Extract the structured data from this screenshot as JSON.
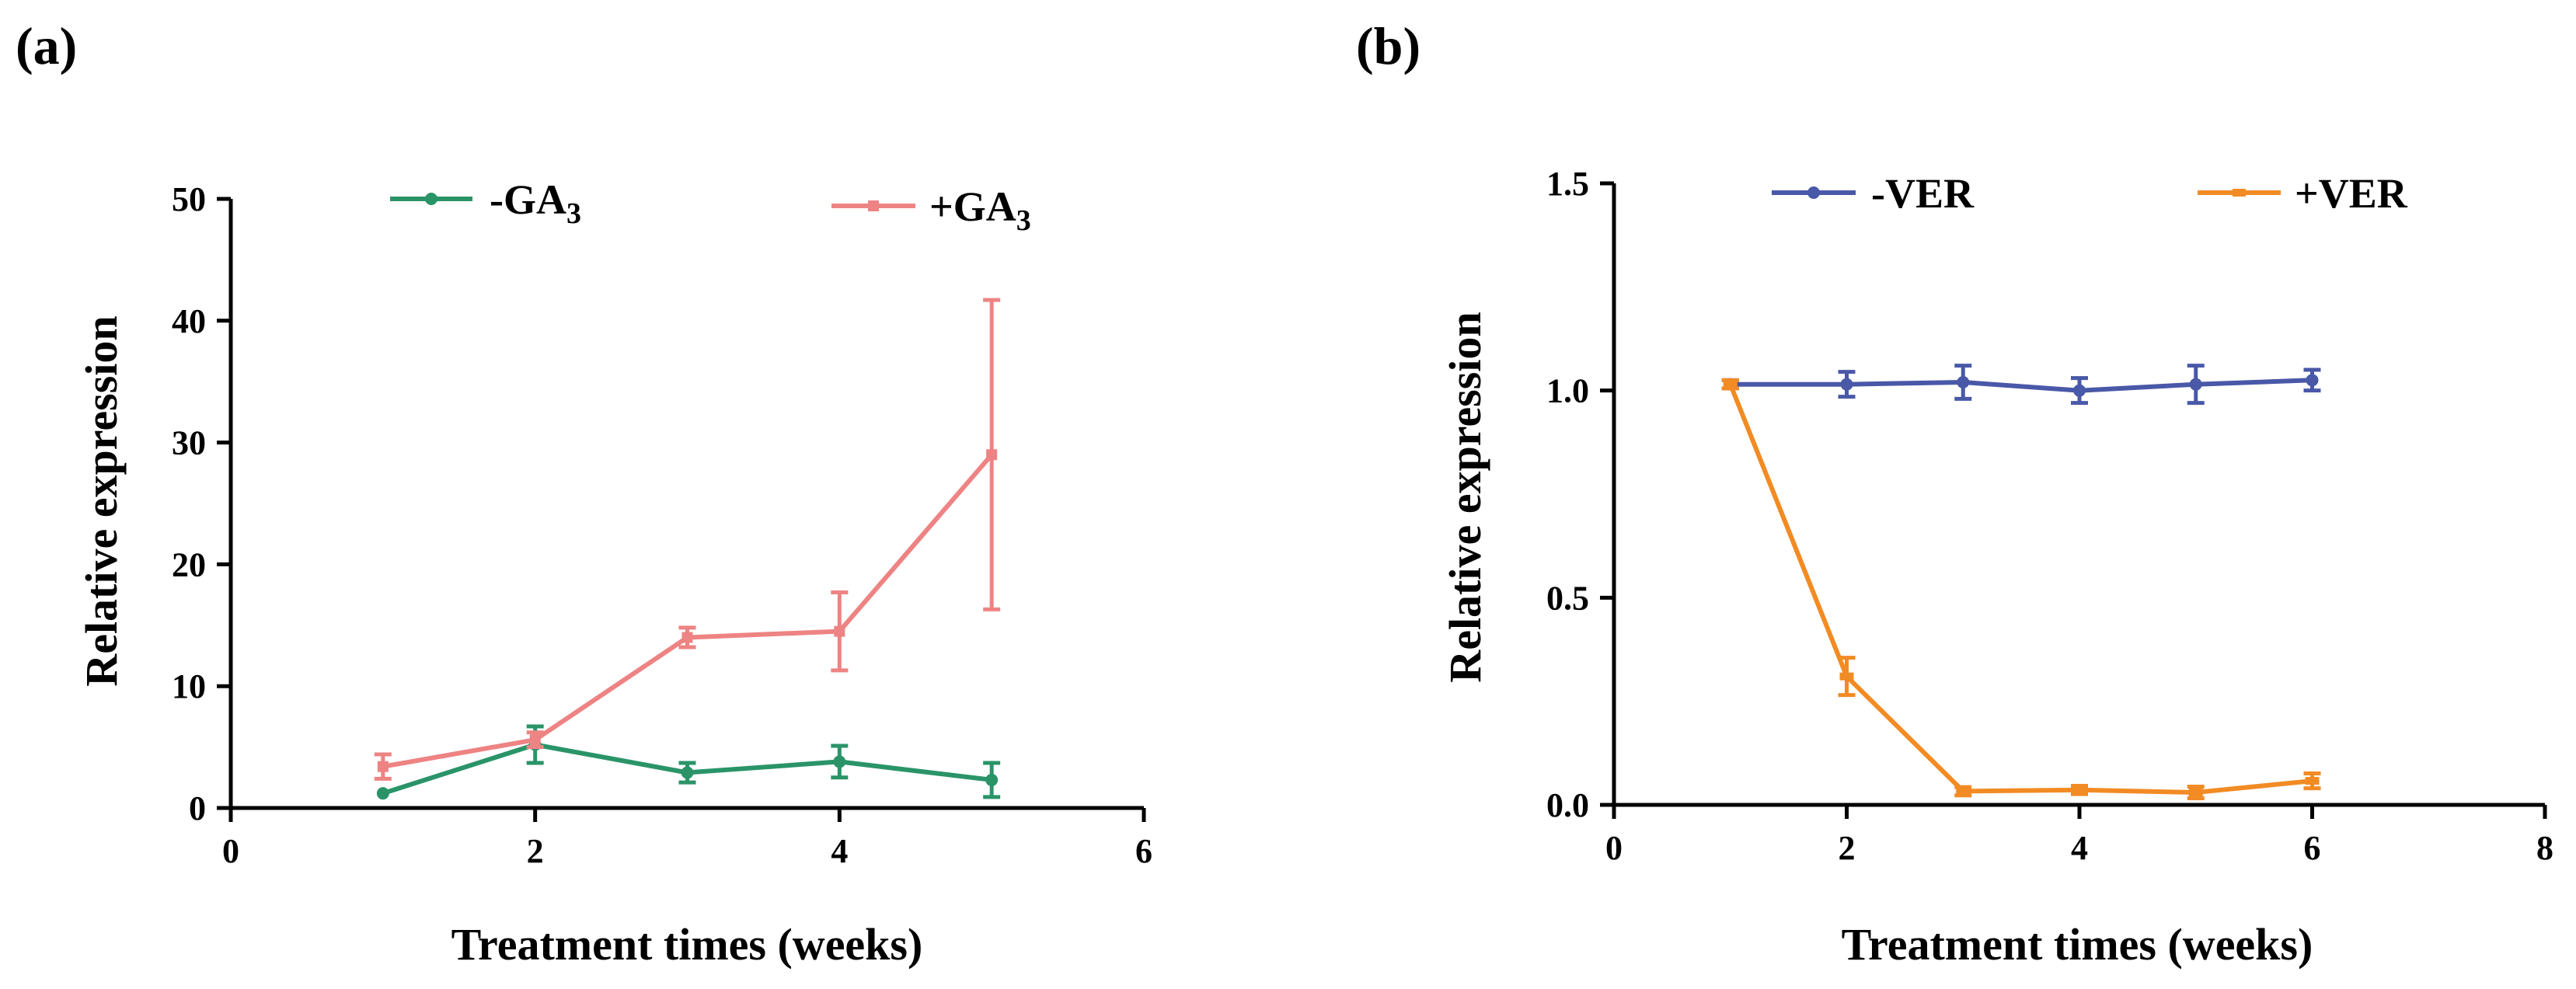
{
  "chart_data": [
    {
      "type": "line",
      "panel_label": "(a)",
      "xlabel": "Treatment times (weeks)",
      "ylabel": "Relative expression",
      "xlim": [
        0,
        6
      ],
      "ylim": [
        0,
        50
      ],
      "xticks": [
        0,
        2,
        4,
        6
      ],
      "yticks": [
        0,
        10,
        20,
        30,
        40,
        50
      ],
      "legend_position": "top",
      "series": [
        {
          "name": "-GA",
          "name_sub": "3",
          "color": "#2a9468",
          "marker": "circle",
          "x": [
            1,
            2,
            3,
            4,
            5
          ],
          "y": [
            1.2,
            5.2,
            2.9,
            3.8,
            2.3
          ],
          "err": [
            0,
            1.5,
            0.8,
            1.3,
            1.4
          ]
        },
        {
          "name": "+GA",
          "name_sub": "3",
          "color": "#ee8383",
          "marker": "square",
          "x": [
            1,
            2,
            3,
            4,
            5
          ],
          "y": [
            3.4,
            5.6,
            14.0,
            14.5,
            29.0
          ],
          "err": [
            1.0,
            0.6,
            0.8,
            3.2,
            12.7
          ]
        }
      ]
    },
    {
      "type": "line",
      "panel_label": "(b)",
      "xlabel": "Treatment times (weeks)",
      "ylabel": "Relative expression",
      "xlim": [
        0,
        8
      ],
      "ylim": [
        0,
        1.5
      ],
      "xticks": [
        0,
        2,
        4,
        6,
        8
      ],
      "yticks": [
        0.0,
        0.5,
        1.0,
        1.5
      ],
      "ytick_labels": [
        "0.0",
        "0.5",
        "1.0",
        "1.5"
      ],
      "legend_position": "top",
      "series": [
        {
          "name": "-VER",
          "color": "#4a58a8",
          "marker": "circle",
          "x": [
            1,
            2,
            3,
            4,
            5,
            6
          ],
          "y": [
            1.015,
            1.015,
            1.02,
            1.0,
            1.015,
            1.025
          ],
          "err": [
            0.01,
            0.03,
            0.04,
            0.03,
            0.045,
            0.025
          ]
        },
        {
          "name": "+VER",
          "color": "#f28b24",
          "marker": "dash",
          "x": [
            1,
            2,
            3,
            4,
            5,
            6
          ],
          "y": [
            1.015,
            0.31,
            0.033,
            0.036,
            0.03,
            0.058
          ],
          "err": [
            0.01,
            0.045,
            0.01,
            0.01,
            0.014,
            0.018
          ]
        }
      ]
    }
  ]
}
